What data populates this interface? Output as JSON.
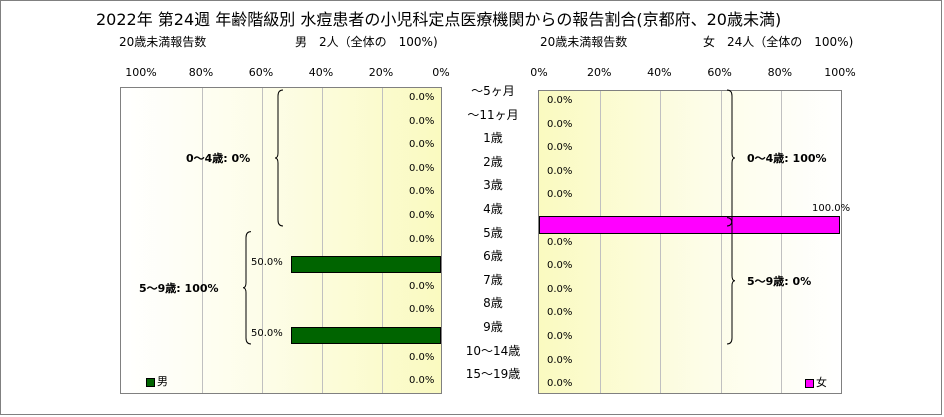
{
  "title": "2022年 第24週 年齢階級別 水痘患者の小児科定点医療機関からの報告割合(京都府、20歳未満)",
  "colors": {
    "male": "#006400",
    "female": "#ff00ff"
  },
  "chart_data": {
    "type": "bar",
    "categories": [
      "～5ヶ月",
      "～11ヶ月",
      "1歳",
      "2歳",
      "3歳",
      "4歳",
      "5歳",
      "6歳",
      "7歳",
      "8歳",
      "9歳",
      "10～14歳",
      "15～19歳"
    ],
    "x_ticks": [
      "100%",
      "80%",
      "60%",
      "40%",
      "20%",
      "0%"
    ],
    "x_ticks_right": [
      "0%",
      "20%",
      "40%",
      "60%",
      "80%",
      "100%"
    ],
    "xlim": [
      0,
      100
    ],
    "male": {
      "subtitle_left": "20歳未満報告数",
      "subtitle_right": "男　2人（全体の　100%)",
      "legend": "男",
      "values": [
        0,
        0,
        0,
        0,
        0,
        0,
        0,
        50,
        0,
        0,
        50,
        0,
        0
      ],
      "labels": [
        "0.0%",
        "0.0%",
        "0.0%",
        "0.0%",
        "0.0%",
        "0.0%",
        "0.0%",
        "50.0%",
        "0.0%",
        "0.0%",
        "50.0%",
        "0.0%",
        "0.0%"
      ],
      "groups": [
        {
          "label": "0～4歳: 0%",
          "from": 0,
          "to": 5
        },
        {
          "label": "5～9歳: 100%",
          "from": 6,
          "to": 10
        }
      ]
    },
    "female": {
      "subtitle_left": "20歳未満報告数",
      "subtitle_right": "女　24人（全体の　100%)",
      "legend": "女",
      "values": [
        0,
        0,
        0,
        0,
        0,
        100,
        0,
        0,
        0,
        0,
        0,
        0,
        0
      ],
      "labels": [
        "0.0%",
        "0.0%",
        "0.0%",
        "0.0%",
        "0.0%",
        "100.0%",
        "0.0%",
        "0.0%",
        "0.0%",
        "0.0%",
        "0.0%",
        "0.0%",
        "0.0%"
      ],
      "groups": [
        {
          "label": "0～4歳: 100%",
          "from": 0,
          "to": 5
        },
        {
          "label": "5～9歳: 0%",
          "from": 6,
          "to": 10
        }
      ]
    }
  }
}
